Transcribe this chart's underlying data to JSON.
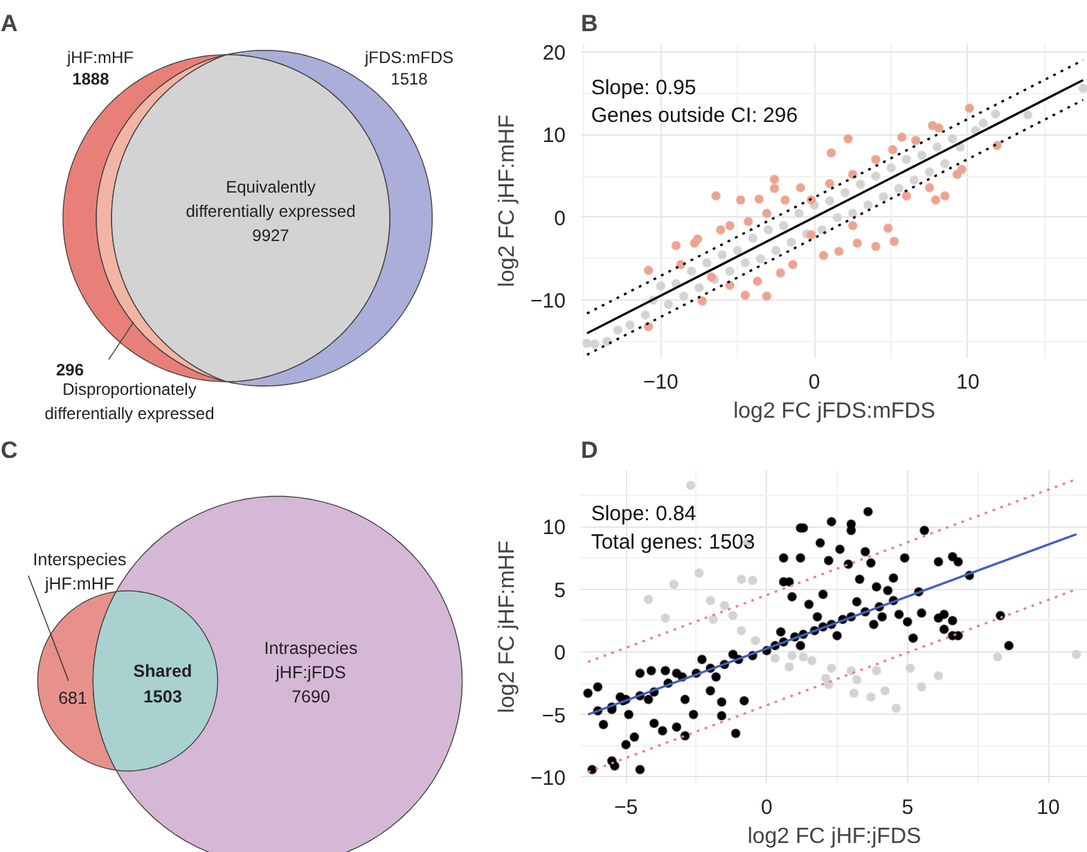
{
  "chart_data": [
    {
      "type": "other",
      "title": "A",
      "categories": [
        "jHF:mHF",
        "jFDS:mFDS",
        "Equivalently\ndifferentially expressed",
        "Disproportionately\ndifferentially expressed"
      ],
      "values": [
        1888,
        1518,
        9927,
        296
      ],
      "colors": [
        "#e88079",
        "#aaaed8",
        "#d3d3d3",
        "#f2b5a5"
      ],
      "data_labels": true
    },
    {
      "type": "scatter",
      "title": "B",
      "xlabel": "log2 FC jFDS:mFDS",
      "ylabel": "log2 FC jHF:mHF",
      "annotations": [
        "Slope: 0.95",
        "Genes outside CI: 296"
      ],
      "xlim": [
        -15.2,
        17.8
      ],
      "ylim": [
        -17,
        21
      ],
      "xticks": [
        -10,
        0,
        10
      ],
      "yticks": [
        -10,
        0,
        10,
        20
      ],
      "grid": true,
      "marker": "circle",
      "series": [
        {
          "type": "scatter",
          "color": "#d3d3d3",
          "x": [
            -14.8,
            -14.3,
            -13.5,
            -12.8,
            -12,
            -11,
            -10.5,
            -10,
            -9.5,
            -9,
            -8.5,
            -8,
            -7.5,
            -7,
            -6.5,
            -6,
            -5.5,
            -5,
            -4.5,
            -4,
            -3.5,
            -3,
            -2.5,
            -2,
            -1.5,
            -1,
            -0.5,
            0,
            0.5,
            1,
            1.5,
            2,
            2.5,
            3,
            3.5,
            4,
            4.5,
            5,
            5.5,
            6,
            6.5,
            7,
            7.5,
            8,
            8.5,
            9,
            9.5,
            10.5,
            11,
            11.8,
            13.9,
            17.5
          ],
          "values": [
            -15.2,
            -15.3,
            -15,
            -13.6,
            -13,
            -11.8,
            -10,
            -8.3,
            -10.5,
            -8,
            -9.5,
            -6.5,
            -8.5,
            -5.5,
            -7.5,
            -4.5,
            -6.5,
            -4,
            -5.5,
            -2.5,
            -5,
            -1.5,
            -4,
            -1,
            -3,
            0.5,
            -2,
            1.5,
            -1.5,
            2,
            0,
            3,
            0.5,
            4,
            1.5,
            5,
            2.5,
            6,
            3.5,
            7,
            4.5,
            7.5,
            5.5,
            8.5,
            6.5,
            9.5,
            8.5,
            10.5,
            11.4,
            12.5,
            12.4,
            15.6
          ]
        },
        {
          "type": "scatter",
          "color": "#eca48f",
          "x": [
            10.1,
            7.7,
            2.2,
            5.7,
            1.1,
            11.9,
            -6.4,
            -4.8,
            -3.6,
            -2.6,
            -0.9,
            -2.6,
            -10.8,
            -10.8,
            -7.3,
            -4.5,
            -3.1,
            0.6,
            4,
            4.8,
            5.2,
            7.9,
            8.5,
            9.6,
            -9,
            -7.8,
            -6.1,
            -4.3,
            -3.1,
            -1.9,
            -0.2,
            1,
            2.5,
            4,
            5.1,
            6.6,
            8.1,
            1.6,
            2.8,
            6,
            7.5,
            9.3,
            -1.4,
            -2.2,
            -3.7,
            -5.5,
            -6.7,
            -8.7,
            -0.2,
            2.5,
            -5.5,
            -7.6
          ],
          "values": [
            13.2,
            11.1,
            9.5,
            9.7,
            7.8,
            8.7,
            2.6,
            2.1,
            2.2,
            4.6,
            3.6,
            3.5,
            -6.4,
            -13.2,
            -10.1,
            -9.4,
            -9.5,
            -4.6,
            -3.5,
            -1.3,
            -2.9,
            2.1,
            2.6,
            5.8,
            -3.4,
            -3.1,
            -1.5,
            -0.5,
            0.5,
            2.1,
            2.1,
            4.1,
            5.2,
            7,
            8.2,
            9.3,
            10.8,
            -4.1,
            -3.1,
            2.6,
            3.6,
            5.2,
            -5.7,
            -6.7,
            -7.7,
            -8.2,
            -7.2,
            -5.7,
            -2.1,
            -1,
            -1,
            -2.6
          ]
        },
        {
          "type": "line",
          "marker": "none",
          "color": "#000000",
          "line_style": "solid",
          "x": [
            -14.8,
            17.5
          ],
          "values": [
            -14.0,
            16.6
          ]
        },
        {
          "type": "line",
          "marker": "none",
          "color": "#000000",
          "line_style": "dotted",
          "x": [
            -14.8,
            17.5
          ],
          "values": [
            -11.6,
            19.0
          ]
        },
        {
          "type": "line",
          "marker": "none",
          "color": "#000000",
          "line_style": "dotted",
          "x": [
            -14.8,
            17.5
          ],
          "values": [
            -16.6,
            14.2
          ]
        }
      ]
    },
    {
      "type": "other",
      "title": "C",
      "categories": [
        "Interspecies\njHF:mHF",
        "Shared",
        "Intraspecies\njHF:jFDS"
      ],
      "values": [
        681,
        1503,
        7690
      ],
      "colors": [
        "#e8918c",
        "#a8d1cf",
        "#d5b8d5"
      ],
      "data_labels": true
    },
    {
      "type": "scatter",
      "title": "D",
      "xlabel": "log2 FC jHF:jFDS",
      "ylabel": "log2 FC jHF:mHF",
      "annotations": [
        "Slope: 0.84",
        "Total genes: 1503"
      ],
      "xlim": [
        -6.6,
        11.4
      ],
      "ylim": [
        -10.5,
        14.5
      ],
      "xticks": [
        -5,
        0,
        5,
        10
      ],
      "yticks": [
        -10,
        -5,
        0,
        5,
        10
      ],
      "grid": true,
      "marker": "circle",
      "series": [
        {
          "type": "scatter",
          "color": "#d3d3d3",
          "x": [
            -2.7,
            -0.7,
            -2.4,
            -3.3,
            -4.2,
            -0.9,
            -0.5,
            -2,
            -1.5,
            -3.6,
            -1.9,
            -1.2,
            -0.9,
            -0.4,
            0.3,
            0.9,
            1.3,
            0.8,
            2.3,
            2.2,
            3,
            3.2,
            3.9,
            3.1,
            3.7,
            4.2,
            4.6,
            5.1,
            5.5,
            6.1,
            8.2,
            11,
            2.1,
            1.6
          ],
          "values": [
            13.3,
            8.7,
            6.3,
            5.4,
            4.2,
            5.8,
            5.7,
            4.1,
            3.7,
            2.7,
            2.6,
            2.9,
            1.7,
            0.9,
            -0.5,
            -0.3,
            -0.4,
            -1.2,
            -1.3,
            -2.6,
            -1.5,
            -2.2,
            -1.5,
            -3.3,
            -3.6,
            -3.1,
            -4.5,
            -1.3,
            -2.8,
            -1.9,
            -0.4,
            -0.2,
            -2.1,
            -0.7
          ]
        },
        {
          "type": "scatter",
          "color": "#000000",
          "x": [
            -6.35,
            -6,
            -6.2,
            -5.5,
            -5.4,
            -4.5,
            -5,
            -4.7,
            -5.8,
            -5.5,
            -5.1,
            -4.5,
            -4.1,
            -3.6,
            -3.2,
            -4,
            -3.7,
            -3.2,
            -2.9,
            -2.9,
            -2.6,
            -2,
            -1.6,
            -1.6,
            -1.1,
            -0.8,
            -4.2,
            -4.9,
            -5.2,
            -6,
            -5.5,
            -5,
            -4.5,
            -4,
            -3.5,
            -3,
            -2.5,
            -2,
            -1.5,
            -1,
            -0.5,
            0,
            0.3,
            0.6,
            1,
            1.3,
            1.7,
            2,
            2.3,
            2.7,
            3,
            3.5,
            4,
            4.5,
            -2.3,
            -1.8,
            -1.2,
            0.5,
            1.2,
            1.8,
            2.5,
            3.2,
            3.8,
            0.6,
            0.8,
            0.6,
            1.2,
            1.2,
            1.3,
            2.3,
            3,
            3.6,
            3,
            1.9,
            2.6,
            2.2,
            2.9,
            3.5,
            3.7,
            4.9,
            5.6,
            6.1,
            6.6,
            6.8,
            7.2,
            4.5,
            5.4,
            4.3,
            1.5,
            0.9,
            2,
            3.3,
            3.9,
            5.5,
            6.1,
            6.3,
            6.6,
            6.3,
            6.6,
            6.8,
            5.2,
            8.3,
            8.6,
            4.1,
            4.7,
            5
          ],
          "values": [
            -3.3,
            -2.8,
            -9.4,
            -8.7,
            -9.1,
            -9.4,
            -7.4,
            -6.8,
            -5.8,
            -4.6,
            -3.9,
            -1.7,
            -1.5,
            -1.5,
            -1.7,
            -5.7,
            -6.3,
            -6,
            -6.7,
            -3.8,
            -5,
            -3.1,
            -5.1,
            -4,
            -6.5,
            -3.9,
            -3.8,
            -5,
            -3.6,
            -4.7,
            -4.4,
            -3.8,
            -3.5,
            -3.2,
            -2.5,
            -2,
            -1.7,
            -1.3,
            -1,
            -0.6,
            -0.3,
            0.1,
            0.5,
            0.8,
            1.2,
            1.4,
            1.7,
            2,
            2.2,
            2.6,
            2.8,
            3.2,
            3.6,
            4.1,
            -0.6,
            -2,
            -0.2,
            1.6,
            0.5,
            2.8,
            1.3,
            4,
            2.2,
            5.6,
            5.6,
            7.5,
            7.5,
            9.9,
            9.9,
            10.4,
            10.2,
            11.2,
            9.7,
            8.7,
            8.2,
            7.3,
            7,
            8,
            7.1,
            7.5,
            9.7,
            7.2,
            7.6,
            7.2,
            6.1,
            5.9,
            4.8,
            4.9,
            3.8,
            4.4,
            4.6,
            5.8,
            5.2,
            3.1,
            2.7,
            3,
            2.5,
            1.8,
            1.3,
            1.3,
            1.1,
            2.9,
            0.5,
            2.8,
            3,
            2.4
          ]
        },
        {
          "type": "line",
          "marker": "none",
          "color": "#3f5fbf",
          "line_style": "solid",
          "x": [
            -6.35,
            11.0
          ],
          "values": [
            -5.0,
            9.4
          ]
        },
        {
          "type": "line",
          "marker": "none",
          "color": "#f07f7f",
          "line_style": "dotted",
          "x": [
            -6.35,
            11.0
          ],
          "values": [
            -0.8,
            13.8
          ]
        },
        {
          "type": "line",
          "marker": "none",
          "color": "#f07f7f",
          "line_style": "dotted",
          "x": [
            -6.35,
            11.0
          ],
          "values": [
            -9.6,
            5.0
          ]
        }
      ]
    }
  ]
}
